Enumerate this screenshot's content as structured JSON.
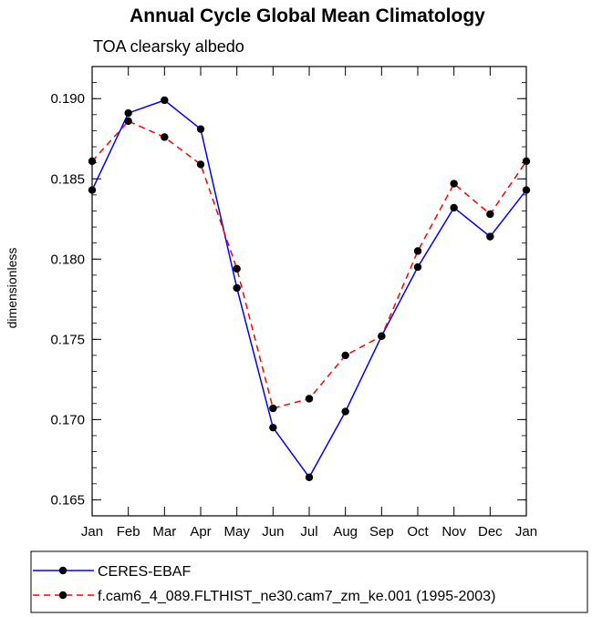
{
  "chart_data": {
    "type": "line",
    "title": "Annual Cycle Global Mean Climatology",
    "subtitle": "TOA clearsky albedo",
    "xlabel": "",
    "ylabel": "dimensionless",
    "categories": [
      "Jan",
      "Feb",
      "Mar",
      "Apr",
      "May",
      "Jun",
      "Jul",
      "Aug",
      "Sep",
      "Oct",
      "Nov",
      "Dec",
      "Jan"
    ],
    "ylim": [
      0.164,
      0.192
    ],
    "yticks": [
      0.165,
      0.17,
      0.175,
      0.18,
      0.185,
      0.19
    ],
    "ytick_labels": [
      "0.165",
      "0.170",
      "0.175",
      "0.180",
      "0.185",
      "0.190"
    ],
    "grid": false,
    "legend_position": "bottom",
    "series": [
      {
        "name": "CERES-EBAF",
        "color": "#0000ff",
        "dash": "solid",
        "values": [
          0.1843,
          0.1891,
          0.1899,
          0.1881,
          0.1782,
          0.1695,
          0.1664,
          0.1705,
          0.1752,
          0.1795,
          0.1832,
          0.1814,
          0.1843
        ]
      },
      {
        "name": "f.cam6_4_089.FLTHIST_ne30.cam7_zm_ke.001 (1995-2003)",
        "color": "#ff0000",
        "dash": "dashed",
        "values": [
          0.1861,
          0.1886,
          0.1876,
          0.1859,
          0.1794,
          0.1707,
          0.1713,
          0.174,
          0.1752,
          0.1805,
          0.1847,
          0.1828,
          0.1861
        ]
      }
    ]
  }
}
